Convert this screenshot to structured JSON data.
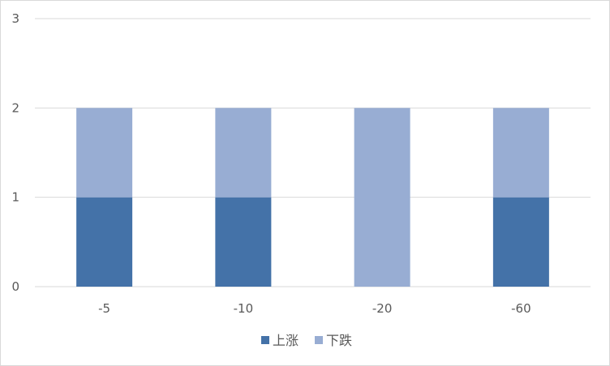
{
  "chart_data": {
    "type": "bar",
    "stacked": true,
    "categories": [
      "-5",
      "-10",
      "-20",
      "-60"
    ],
    "series": [
      {
        "name": "上涨",
        "values": [
          1,
          1,
          0,
          1
        ],
        "color": "#4472a8"
      },
      {
        "name": "下跌",
        "values": [
          1,
          1,
          2,
          1
        ],
        "color": "#98add3"
      }
    ],
    "ylim": [
      0,
      3
    ],
    "yticks": [
      0,
      1,
      2,
      3
    ],
    "grid": true,
    "legend_position": "bottom"
  }
}
